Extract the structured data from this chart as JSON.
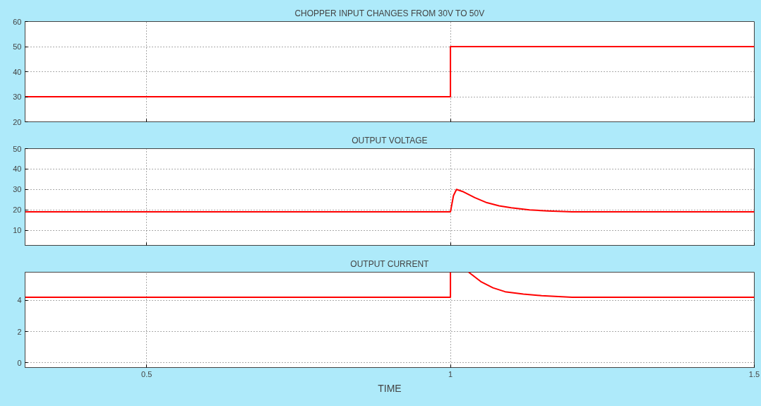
{
  "chart_data": [
    {
      "type": "line",
      "title": "CHOPPER INPUT CHANGES FROM 30V TO 50V",
      "x": [
        0.3,
        1.0,
        1.0,
        1.5
      ],
      "series": [
        {
          "color": "#ff0000",
          "values": [
            30,
            30,
            50,
            50
          ]
        }
      ],
      "xlim": [
        0.3,
        1.5
      ],
      "xticks": [
        0.5,
        1,
        1.5
      ],
      "ylim": [
        20,
        60
      ],
      "yticks": [
        20,
        30,
        40,
        50,
        60
      ],
      "grid": true,
      "tick_labels": "y",
      "line_style": "solid"
    },
    {
      "type": "line",
      "title": "OUTPUT VOLTAGE",
      "x": [
        0.3,
        1.0,
        1.005,
        1.01,
        1.02,
        1.04,
        1.06,
        1.08,
        1.1,
        1.13,
        1.16,
        1.2,
        1.5
      ],
      "series": [
        {
          "color": "#ff0000",
          "values": [
            19,
            19,
            27,
            30,
            29,
            26,
            23.5,
            22,
            21,
            20,
            19.5,
            19,
            19
          ]
        }
      ],
      "xlim": [
        0.3,
        1.5
      ],
      "xticks": [
        0.5,
        1,
        1.5
      ],
      "ylim": [
        2.6,
        50
      ],
      "yticks": [
        10,
        20,
        30,
        40,
        50
      ],
      "grid": true,
      "tick_labels": "y",
      "line_style": "solid"
    },
    {
      "type": "line",
      "title": "OUTPUT CURRENT",
      "xlabel": "TIME",
      "x": [
        0.3,
        1.0,
        1.0
      ],
      "series": [
        {
          "color": "#ff0000",
          "values": [
            4.2,
            4.2,
            5.8
          ]
        },
        {
          "color": "#ff0000",
          "x": [
            1.03,
            1.05,
            1.07,
            1.09,
            1.12,
            1.15,
            1.2,
            1.5
          ],
          "values": [
            5.8,
            5.2,
            4.8,
            4.55,
            4.4,
            4.3,
            4.2,
            4.2
          ]
        }
      ],
      "xlim": [
        0.3,
        1.5
      ],
      "xticks": [
        0.5,
        1,
        1.5
      ],
      "ylim": [
        -0.3,
        5.8
      ],
      "yticks": [
        0,
        2,
        4
      ],
      "grid": true,
      "line_style": "solid"
    }
  ]
}
